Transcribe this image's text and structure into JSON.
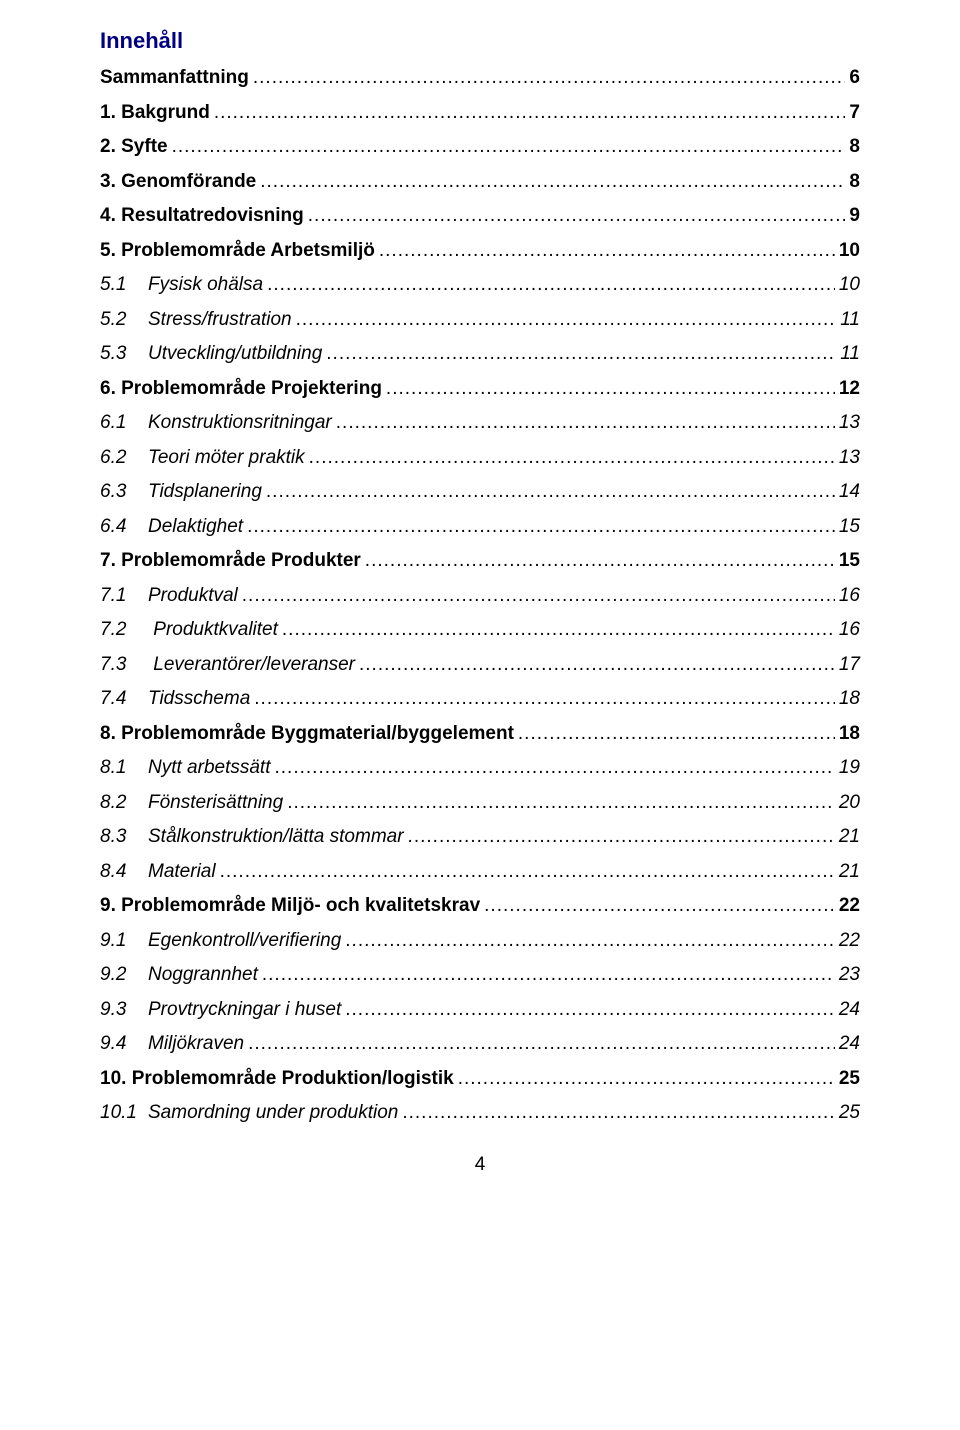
{
  "title": "Innehåll",
  "page_number": "4",
  "colors": {
    "title_color": "#000080",
    "text_color": "#000000",
    "background": "#ffffff"
  },
  "typography": {
    "title_fontsize_pt": 17,
    "body_fontsize_pt": 14,
    "font_family": "Arial"
  },
  "entries": [
    {
      "level": 1,
      "style": "bold",
      "num": "",
      "text": "Sammanfattning",
      "page": "6"
    },
    {
      "level": 1,
      "style": "bold",
      "num": "",
      "text": "1. Bakgrund",
      "page": "7"
    },
    {
      "level": 1,
      "style": "bold",
      "num": "",
      "text": "2. Syfte",
      "page": "8"
    },
    {
      "level": 1,
      "style": "bold",
      "num": "",
      "text": "3. Genomförande",
      "page": "8"
    },
    {
      "level": 1,
      "style": "bold",
      "num": "",
      "text": "4. Resultatredovisning",
      "page": "9"
    },
    {
      "level": 1,
      "style": "bold",
      "num": "",
      "text": "5. Problemområde Arbetsmiljö",
      "page": "10"
    },
    {
      "level": 2,
      "style": "italic",
      "num": "5.1",
      "text": "Fysisk ohälsa",
      "page": "10"
    },
    {
      "level": 2,
      "style": "italic",
      "num": "5.2",
      "text": "Stress/frustration",
      "page": "11"
    },
    {
      "level": 2,
      "style": "italic",
      "num": "5.3",
      "text": "Utveckling/utbildning",
      "page": "11"
    },
    {
      "level": 1,
      "style": "bold",
      "num": "",
      "text": "6. Problemområde Projektering",
      "page": "12"
    },
    {
      "level": 2,
      "style": "italic",
      "num": "6.1",
      "text": "Konstruktionsritningar",
      "page": "13"
    },
    {
      "level": 2,
      "style": "italic",
      "num": "6.2",
      "text": "Teori möter praktik",
      "page": "13"
    },
    {
      "level": 2,
      "style": "italic",
      "num": "6.3",
      "text": "Tidsplanering",
      "page": "14"
    },
    {
      "level": 2,
      "style": "italic",
      "num": "6.4",
      "text": "Delaktighet",
      "page": "15"
    },
    {
      "level": 1,
      "style": "bold",
      "num": "",
      "text": "7. Problemområde Produkter",
      "page": "15"
    },
    {
      "level": 2,
      "style": "italic",
      "num": "7.1",
      "text": "Produktval",
      "page": "16"
    },
    {
      "level": 2,
      "style": "italic",
      "num": "7.2",
      "text": " Produktkvalitet",
      "page": "16"
    },
    {
      "level": 2,
      "style": "italic",
      "num": "7.3",
      "text": " Leverantörer/leveranser",
      "page": "17"
    },
    {
      "level": 2,
      "style": "italic",
      "num": "7.4",
      "text": "Tidsschema",
      "page": "18"
    },
    {
      "level": 1,
      "style": "bold",
      "num": "",
      "text": "8. Problemområde Byggmaterial/byggelement",
      "page": "18"
    },
    {
      "level": 2,
      "style": "italic",
      "num": "8.1",
      "text": "Nytt arbetssätt",
      "page": "19"
    },
    {
      "level": 2,
      "style": "italic",
      "num": "8.2",
      "text": "Fönsterisättning",
      "page": "20"
    },
    {
      "level": 2,
      "style": "italic",
      "num": "8.3",
      "text": "Stålkonstruktion/lätta stommar",
      "page": "21"
    },
    {
      "level": 2,
      "style": "italic",
      "num": "8.4",
      "text": "Material",
      "page": "21"
    },
    {
      "level": 1,
      "style": "bold",
      "num": "",
      "text": "9. Problemområde Miljö- och kvalitetskrav",
      "page": "22"
    },
    {
      "level": 2,
      "style": "italic",
      "num": "9.1",
      "text": "Egenkontroll/verifiering",
      "page": "22"
    },
    {
      "level": 2,
      "style": "italic",
      "num": "9.2",
      "text": "Noggrannhet",
      "page": "23"
    },
    {
      "level": 2,
      "style": "italic",
      "num": "9.3",
      "text": "Provtryckningar i huset",
      "page": "24"
    },
    {
      "level": 2,
      "style": "italic",
      "num": "9.4",
      "text": "Miljökraven",
      "page": "24"
    },
    {
      "level": 1,
      "style": "bold",
      "num": "",
      "text": "10. Problemområde Produktion/logistik",
      "page": "25"
    },
    {
      "level": 2,
      "style": "italic",
      "num": "10.1",
      "text": "Samordning under produktion",
      "page": "25"
    }
  ]
}
